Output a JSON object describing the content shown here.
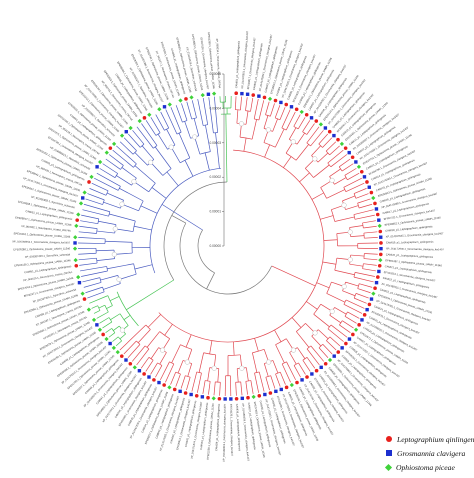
{
  "legend": [
    {
      "label": "Leptographium qinlingensis",
      "color": "#e8201c",
      "shape": "circle"
    },
    {
      "label": "Grosmannia clavigera",
      "color": "#1c2fcf",
      "shape": "square"
    },
    {
      "label": "Ophiostoma piceae",
      "color": "#3fd23a",
      "shape": "diamond"
    }
  ],
  "scale_ticks": [
    "0.00000",
    "0.00001",
    "0.00002",
    "0.00003",
    "0.00004",
    "0.00005"
  ],
  "clade_colors": {
    "red": "#e0474f",
    "blue": "#4a5cc0",
    "green": "#46c454",
    "root": "#7a7a7a"
  },
  "tips": [
    "CAMI01_p1_Leptographium_qinlingensis",
    "XP_014170951.1_Grosmannia_clavigera_kw1407",
    "EFX03817.1_Grosmannia_clavigera_kw1407",
    "CAMI02_p1_Leptographium_qinlingensis",
    "XP_014170934.1_Grosmannia_clavigera_kw1407",
    "CAMI03_p1_Leptographium_qinlingensis",
    "EPE09011.1_Ophiostoma_piceae_UAMH_11346",
    "CAMI04_p1_Leptographium_qinlingensis",
    "XP_014173012.1_Grosmannia_clavigera_kw1407",
    "CAMI05_p1_Leptographium_qinlingensis",
    "EFX01622.1_Grosmannia_clavigera_kw1407",
    "CAMI06_p1_Leptographium_qinlingensis",
    "EPE05513.1_Ophiostoma_piceae_UAMH_11346",
    "CAMI07_p1_Leptographium_qinlingensis",
    "XP_014169782.1_Grosmannia_clavigera_kw1407",
    "CAMI08_p1_Leptographium_qinlingensis",
    "EPE06125.1_Ophiostoma_piceae_UAMH_11346",
    "XP_014172390.1_Grosmannia_clavigera_kw1407",
    "CAMI09_p1_Leptographium_qinlingensis",
    "EFX00417.1_Grosmannia_clavigera_kw1407",
    "CAMI10_p1_Leptographium_qinlingensis",
    "EPE04481.1_Ophiostoma_piceae_UAMH_11346",
    "CAMI11_p1_Leptographium_qinlingensis",
    "XP_014168827.1_Grosmannia_clavigera_kw1407",
    "CAMI12_p1_Leptographium_qinlingensis",
    "XP_014171558.1_Grosmannia_clavigera_kw1407",
    "EPE07702.1_Ophiostoma_piceae_UAMH_11346",
    "CAMI13_p1_Leptographium_qinlingensis",
    "EFX04790.1_Grosmannia_clavigera_kw1407",
    "CAMI14_p1_Leptographium_qinlingensis",
    "XP_014174430.1_Grosmannia_clavigera_kw1407",
    "CAMI15_p1_Leptographium_qinlingensis",
    "EPE02913.1_Ophiostoma_piceae_UAMH_11346",
    "CAMI16_p1_Leptographium_qinlingensis",
    "XP_014170288.1_Grosmannia_clavigera_kw1407",
    "CAMI17_p1_Leptographium_qinlingensis",
    "EFX07211.1_Grosmannia_clavigera_kw1407",
    "EPE08852.1_Ophiostoma_piceae_UAMH_11346",
    "CAMI18_p1_Leptographium_qinlingensis",
    "XP_014167645.1_Grosmannia_clavigera_kw1407",
    "CAMI19_p1_Leptographium_qinlingensis",
    "XP_014172936.1_Grosmannia_clavigera_kw1407",
    "CAMI20_p1_Leptographium_qinlingensis",
    "EPE01397.1_Ophiostoma_piceae_UAMH_11346",
    "CAMI21_p1_Leptographium_qinlingensis",
    "EFX02654.1_Grosmannia_clavigera_kw1407",
    "CAMI22_p1_Leptographium_qinlingensis",
    "XP_014169115.1_Grosmannia_clavigera_kw1407",
    "CAMI23_p1_Leptographium_qinlingensis",
    "EPE06934.1_Ophiostoma_piceae_UAMH_11346",
    "XP_014173781.1_Grosmannia_clavigera_kw1407",
    "CAMI24_p1_Leptographium_qinlingensis",
    "EFX05578.1_Grosmannia_clavigera_kw1407",
    "CAMI25_p1_Leptographium_qinlingensis",
    "XP_014168012.1_Grosmannia_clavigera_kw1407",
    "CAMI26_p1_Leptographium_qinlingensis",
    "EPE03671.1_Ophiostoma_piceae_UAMH_11346",
    "CAMI27_p1_Leptographium_qinlingensis",
    "XP_014171207.1_Grosmannia_clavigera_kw1407",
    "CAMI28_p1_Leptographium_qinlingensis",
    "EFX06315.1_Grosmannia_clavigera_kw1407",
    "CAMI29_p1_Leptographium_qinlingensis",
    "XP_014174869.1_Grosmannia_clavigera_kw1407",
    "EPE09560.1_Ophiostoma_piceae_UAMH_11346",
    "CAMI30_p1_Leptographium_qinlingensis",
    "XP_014166983.1_Grosmannia_clavigera_kw1407",
    "CAMI31_p1_Leptographium_qinlingensis",
    "EFX00982.1_Grosmannia_clavigera_kw1407",
    "CAMI32_p1_Leptographium_qinlingensis",
    "XP_014172144.1_Grosmannia_clavigera_kw1407",
    "CAMI33_p1_Leptographium_qinlingensis",
    "EPE05146.1_Ophiostoma_piceae_UAMH_11346",
    "CAMI34_p1_Leptographium_qinlingensis",
    "XP_014170603.1_Grosmannia_clavigera_kw1407",
    "EFX03409.1_Grosmannia_clavigera_kw1407",
    "CAMI35_p1_Leptographium_qinlingensis",
    "XP_014173325.1_Grosmannia_clavigera_kw1407",
    "CAMI36_p1_Leptographium_qinlingensis",
    "EPE07318.1_Ophiostoma_piceae_UAMH_11346",
    "CAMI37_p1_Leptographium_qinlingensis",
    "XP_014169459.1_Grosmannia_clavigera_kw1407",
    "CAMI38_p1_Leptographium_qinlingensis",
    "EFX04126.1_Grosmannia_clavigera_kw1407",
    "XP_014168419.1_Grosmannia_clavigera_kw1407",
    "CAMI39_p1_Leptographium_qinlingensis",
    "EPE02258.1_Ophiostoma_piceae_UAMH_11346",
    "CAMI40_p1_Leptographium_qinlingensis",
    "XP_014171874.1_Grosmannia_clavigera_kw1407",
    "CAMI41_p1_Leptographium_qinlingensis",
    "EFX05910.1_Grosmannia_clavigera_kw1407",
    "CAMI42_p1_Leptographium_qinlingensis",
    "XP_014174205.1_Grosmannia_clavigera_kw1407",
    "CAMI43_p1_Leptographium_qinlingensis",
    "EPE08417.1_Ophiostoma_piceae_UAMH_11346",
    "CAMI44_p1_Leptographium_qinlingensis",
    "XP_014167320.1_Grosmannia_clavigera_kw1407",
    "CAMI45_p1_Leptographium_qinlingensis",
    "EFX01945.1_Grosmannia_clavigera_kw1407",
    "CAMI46_p1_Leptographium_qinlingensis",
    "XP_014172661.1_Grosmannia_clavigera_kw1407",
    "EPE04802.1_Ophiostoma_piceae_UAMH_11346",
    "CAMI47_p1_Leptographium_qinlingensis",
    "XP_014169973.1_Grosmannia_clavigera_kw1407",
    "CAMI48_p1_Leptographium_qinlingensis",
    "EPE06607.1_Ophiostoma_piceae_UAMH_11346",
    "EPE01735.1_Ophiostoma_piceae_UAMH_11346",
    "XP_014170010.1_Grosmannia_clavigera_kw1407",
    "EPE09288.1_Ophiostoma_piceae_UAMH_11346",
    "CAMI49_p1_Leptographium_qinlingensis",
    "EPE03190.1_Ophiostoma_piceae_UAMH_11346",
    "XP_014173550.1_Grosmannia_clavigera_kw1407",
    "EPE08079.1_Ophiostoma_piceae_UAMH_11346",
    "KFX45321.1_Neurospora_crassa_OR74A",
    "EPE05820.1_Ophiostoma_piceae_UAMH_11346",
    "XP_964187.1_Neurospora_crassa_OR74A",
    "CAMI50_p1_Leptographium_qinlingensis",
    "EPE02594.1_Ophiostoma_piceae_UAMH_11346",
    "XP_011107355.1_Sporothrix_schenckii",
    "EFX02371.1_Grosmannia_clavigera_kw1407",
    "EPE07043.1_Ophiostoma_piceae_UAMH_11346",
    "XP_963625.1_Neurospora_crassa_OR74A",
    "CAMI51_p1_Leptographium_qinlingensis",
    "EPE04139.1_Ophiostoma_piceae_UAMH_11346",
    "XP_016587420.1_Sporothrix_schenckii",
    "EPE06288.1_Ophiostoma_piceae_UAMH_11346",
    "XP_014168664.1_Grosmannia_clavigera_kw1407",
    "EPE01062.1_Ophiostoma_piceae_UAMH_11346",
    "XP_957902.1_Neurospora_crassa_OR74A",
    "EPE09917.1_Ophiostoma_piceae_UAMH_11346",
    "CAMI52_p1_Leptographium_qinlingensis",
    "EPE03508.1_Ophiostoma_piceae_UAMH_11346",
    "XP_011105902.1_Sporothrix_schenckii",
    "EPE05357.1_Ophiostoma_piceae_UAMH_11346",
    "XP_014172003.1_Grosmannia_clavigera_kw1407",
    "EPE08641.1_Ophiostoma_piceae_UAMH_11346",
    "XP_960436.1_Neurospora_crassa_OR74A",
    "CAMI53_p1_Leptographium_qinlingensis",
    "EPE02051.1_Ophiostoma_piceae_UAMH_11346",
    "XP_016588913.1_Sporothrix_schenckii",
    "EFX06748.1_Grosmannia_clavigera_kw1407",
    "EPE07875.1_Ophiostoma_piceae_UAMH_11346",
    "XP_959218.1_Neurospora_crassa_OR74A",
    "EPE04420.1_Ophiostoma_piceae_UAMH_11346",
    "CAMI54_p1_Leptographium_qinlingensis",
    "EPE06011.1_Ophiostoma_piceae_UAMH_11346",
    "XP_011108817.1_Sporothrix_schenckii",
    "EPE01913.1_Ophiostoma_piceae_UAMH_11346",
    "XP_014174590.1_Grosmannia_clavigera_kw1407",
    "EPE09134.1_Ophiostoma_piceae_UAMH_11346",
    "XP_962791.1_Neurospora_crassa_OR74A",
    "EPE03822.1_Ophiostoma_piceae_UAMH_11346",
    "CAMI55_p1_Leptographium_qinlingensis",
    "EPE05694.1_Ophiostoma_piceae_UAMH_11346",
    "XP_016590271.1_Sporothrix_schenckii",
    "EPE08266.1_Ophiostoma_piceae_UAMH_11346",
    "XP_014167098.1_Grosmannia_clavigera_kw1407",
    "EPE02740.1_Ophiostoma_piceae_UAMH_11346",
    "XP_961557.1_Neurospora_crassa_OR74A",
    "EPE07590.1_Ophiostoma_piceae_UAMH_11346",
    "CAMI56_p1_Leptographium_qinlingensis",
    "EPE04663.1_Ophiostoma_piceae_UAMH_11346",
    "XP_011104376.1_Sporothrix_schenckii",
    "EPE06853.1_Ophiostoma_piceae_UAMH_11346",
    "EFX07530.1_Grosmannia_clavigera_kw1407",
    "EPE01288.1_Ophiostoma_piceae_UAMH_11346",
    "XP_965034.1_Neurospora_crassa_OR74A"
  ]
}
